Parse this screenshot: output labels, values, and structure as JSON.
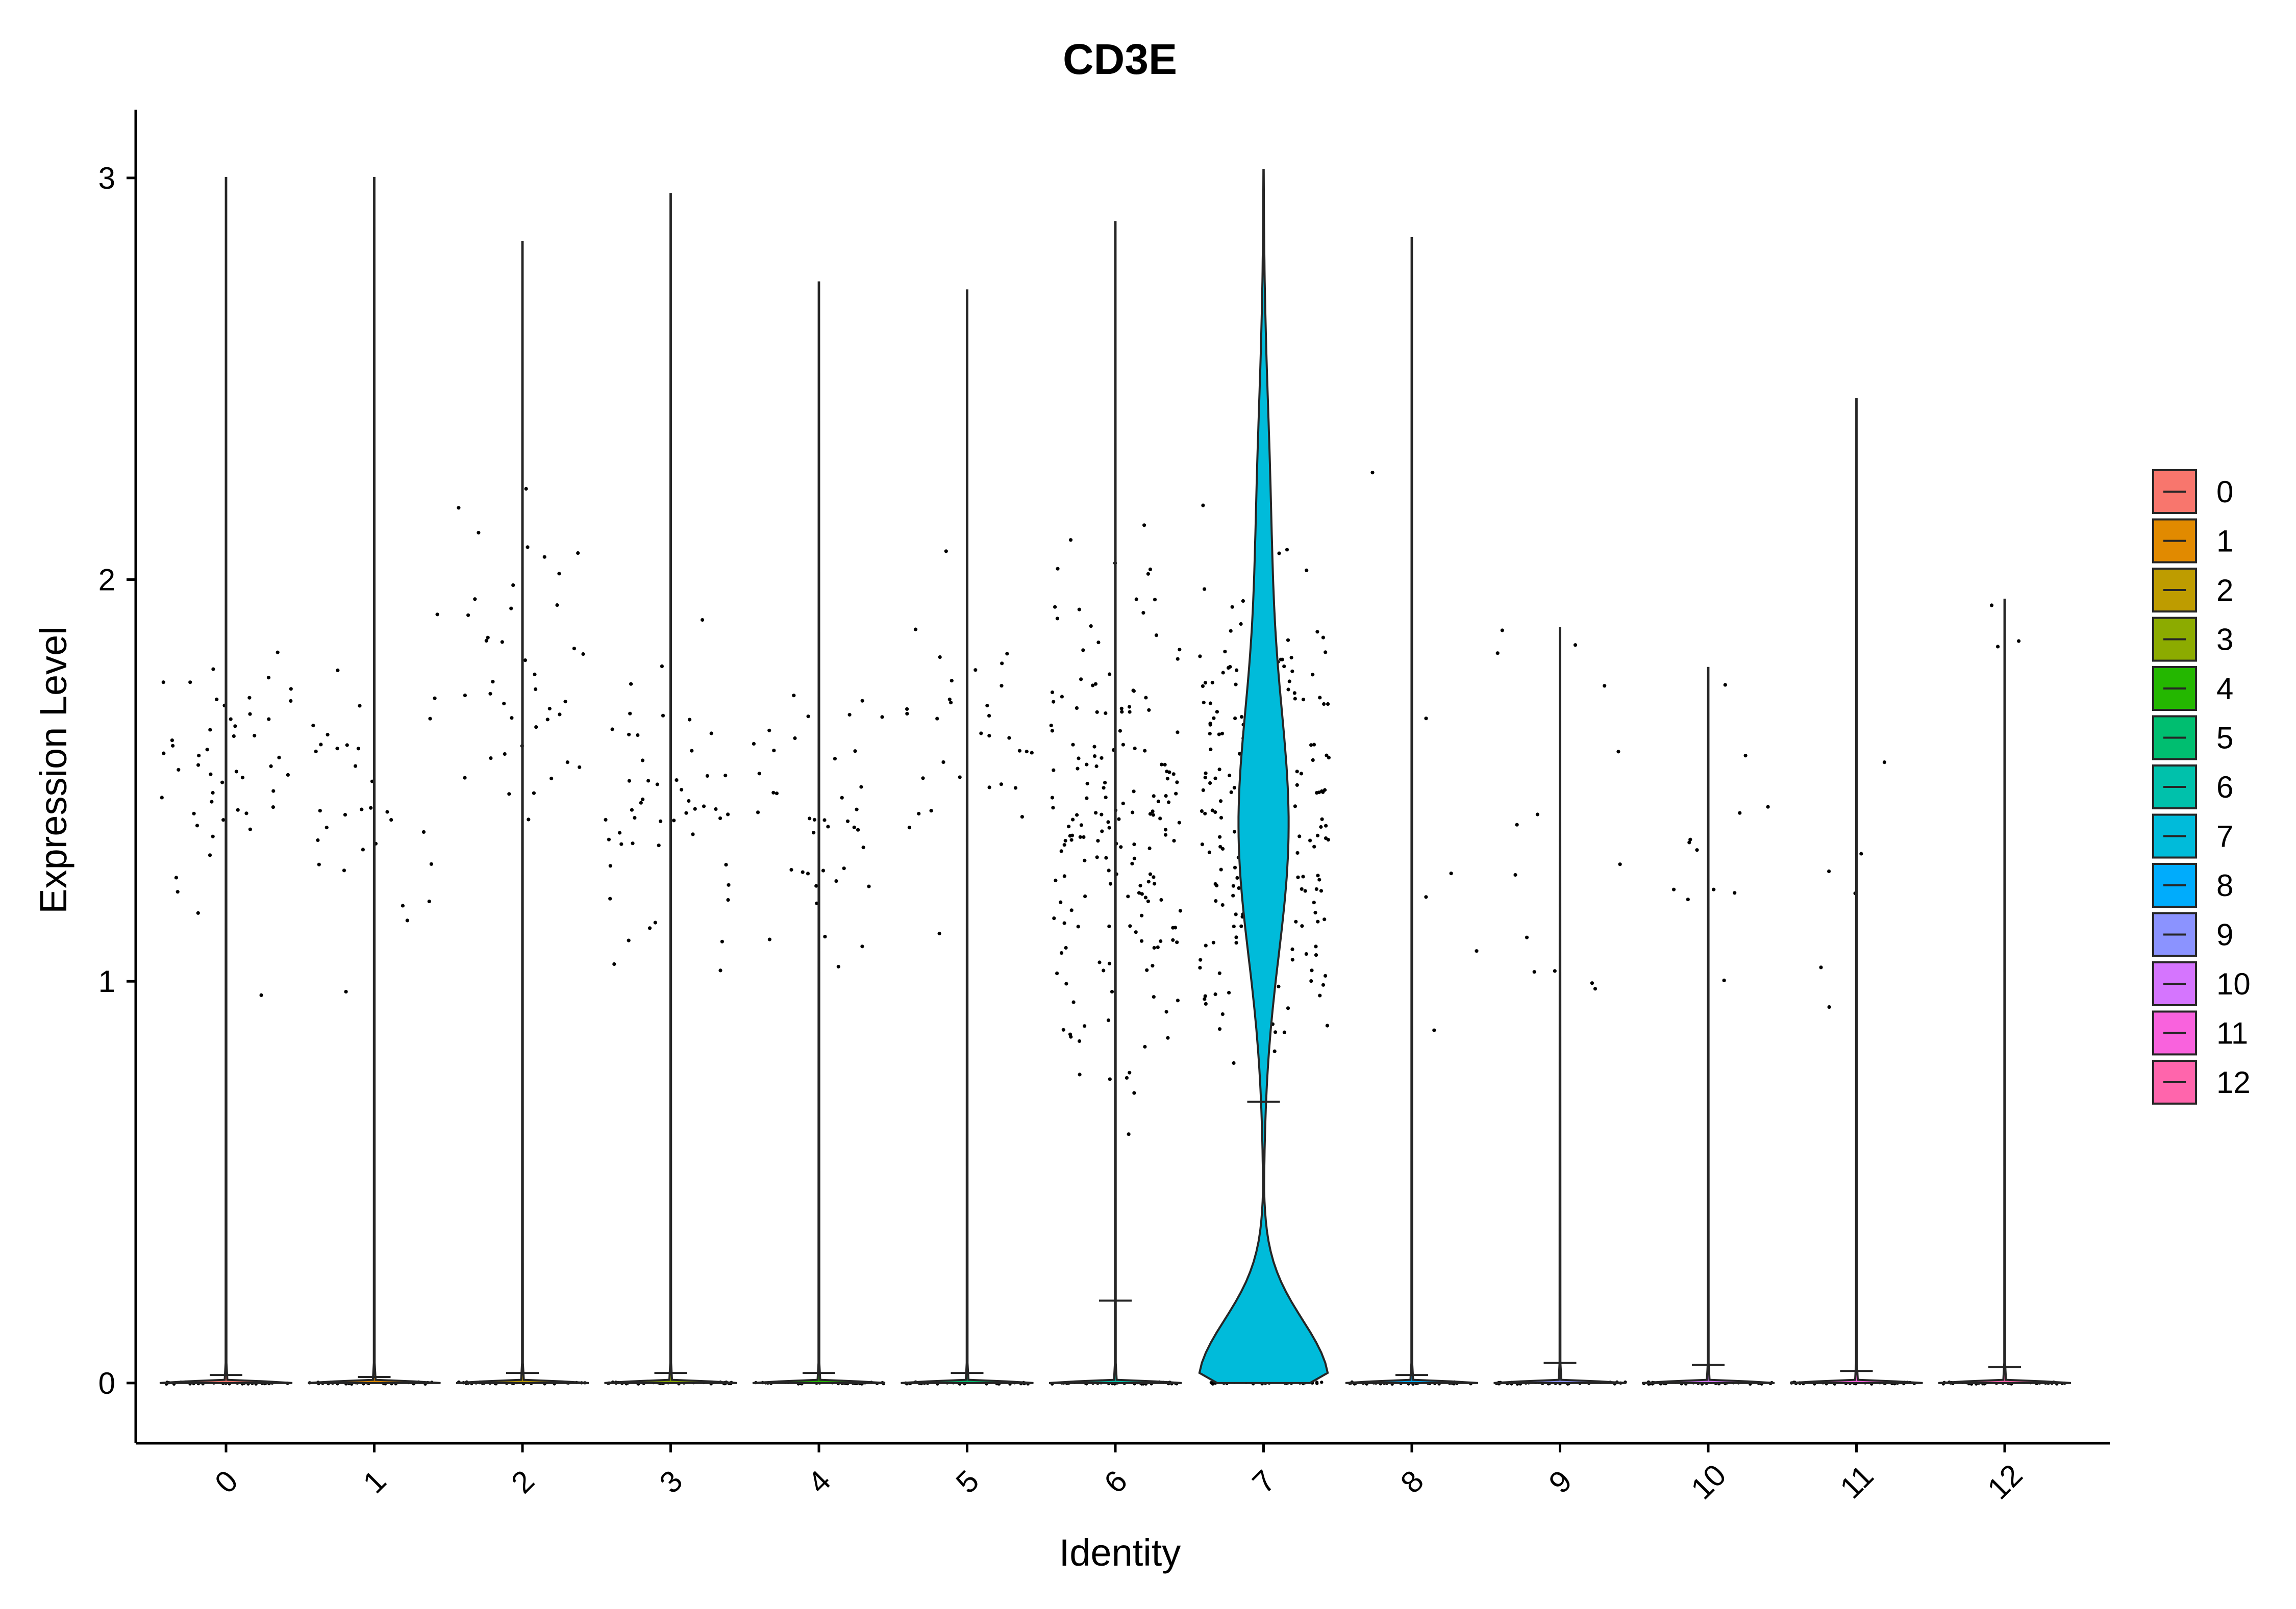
{
  "chart_data": {
    "type": "violin",
    "title": "CD3E",
    "xlabel": "Identity",
    "ylabel": "Expression Level",
    "ylim": [
      -0.15,
      3.17
    ],
    "yticks": [
      0,
      1,
      2,
      3
    ],
    "ytick_labels": [
      "0",
      "1",
      "2",
      "3"
    ],
    "categories": [
      "0",
      "1",
      "2",
      "3",
      "4",
      "5",
      "6",
      "7",
      "8",
      "9",
      "10",
      "11",
      "12"
    ],
    "colors": [
      "#F8766D",
      "#E18A00",
      "#BE9C00",
      "#8CAB00",
      "#24B700",
      "#00BE70",
      "#00C1AB",
      "#00BBDA",
      "#00ACFC",
      "#8B93FF",
      "#D575FE",
      "#F962DD",
      "#FF65AC"
    ],
    "max_expression": [
      3.0,
      3.0,
      2.84,
      2.96,
      2.74,
      2.72,
      2.89,
      3.02,
      2.85,
      1.88,
      1.78,
      2.45,
      1.95
    ],
    "median_marker": [
      0.02,
      0.015,
      0.025,
      0.025,
      0.025,
      0.025,
      0.205,
      0.7,
      0.02,
      0.05,
      0.045,
      0.03,
      0.04
    ],
    "legend": {
      "position": "right",
      "entries": [
        "0",
        "1",
        "2",
        "3",
        "4",
        "5",
        "6",
        "7",
        "8",
        "9",
        "10",
        "11",
        "12"
      ]
    }
  }
}
